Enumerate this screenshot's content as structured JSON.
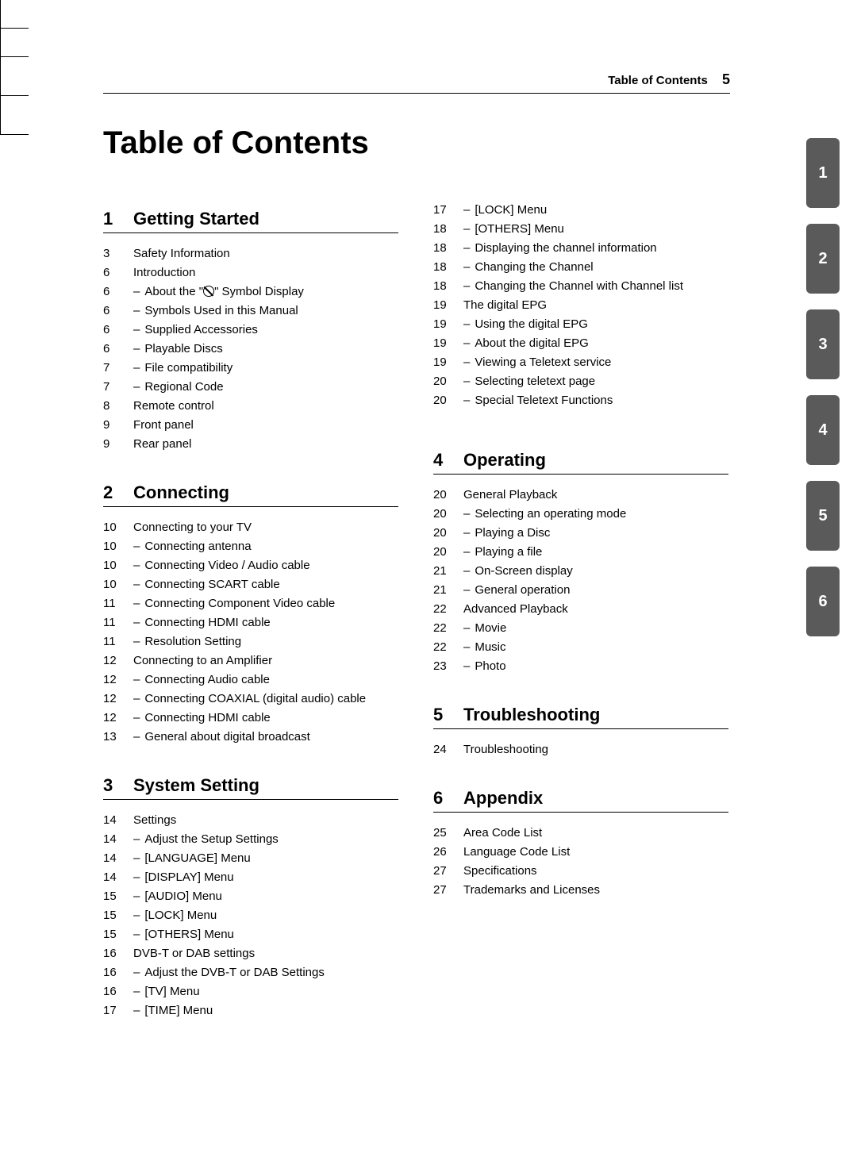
{
  "running_head": {
    "label": "Table of Contents",
    "page_number": "5"
  },
  "title": "Table of Contents",
  "side_tabs": [
    "1",
    "2",
    "3",
    "4",
    "5",
    "6"
  ],
  "style": {
    "tab_bg": "#5a5a5a",
    "tab_fg": "#ffffff",
    "text_color": "#000000",
    "bg_color": "#ffffff",
    "title_fontsize": 40,
    "section_fontsize": 22,
    "body_fontsize": 15
  },
  "sections": [
    {
      "num": "1",
      "title": "Getting Started",
      "col": 0,
      "entries": [
        {
          "page": "3",
          "text": "Safety Information",
          "sub": false
        },
        {
          "page": "6",
          "text": "Introduction",
          "sub": false
        },
        {
          "page": "6",
          "text": "About the \"⊘\" Symbol Display",
          "sub": true,
          "symbol": true
        },
        {
          "page": "6",
          "text": "Symbols Used in this Manual",
          "sub": true
        },
        {
          "page": "6",
          "text": "Supplied Accessories",
          "sub": true
        },
        {
          "page": "6",
          "text": "Playable Discs",
          "sub": true
        },
        {
          "page": "7",
          "text": "File compatibility",
          "sub": true
        },
        {
          "page": "7",
          "text": "Regional Code",
          "sub": true
        },
        {
          "page": "8",
          "text": "Remote control",
          "sub": false
        },
        {
          "page": "9",
          "text": "Front panel",
          "sub": false
        },
        {
          "page": "9",
          "text": "Rear panel",
          "sub": false
        }
      ]
    },
    {
      "num": "2",
      "title": "Connecting",
      "col": 0,
      "entries": [
        {
          "page": "10",
          "text": "Connecting to your TV",
          "sub": false
        },
        {
          "page": "10",
          "text": "Connecting antenna",
          "sub": true
        },
        {
          "page": "10",
          "text": "Connecting Video / Audio cable",
          "sub": true
        },
        {
          "page": "10",
          "text": "Connecting SCART cable",
          "sub": true
        },
        {
          "page": "11",
          "text": "Connecting Component Video cable",
          "sub": true
        },
        {
          "page": "11",
          "text": "Connecting HDMI cable",
          "sub": true
        },
        {
          "page": "11",
          "text": "Resolution Setting",
          "sub": true
        },
        {
          "page": "12",
          "text": "Connecting to an Amplifier",
          "sub": false
        },
        {
          "page": "12",
          "text": "Connecting Audio cable",
          "sub": true
        },
        {
          "page": "12",
          "text": "Connecting COAXIAL (digital audio) cable",
          "sub": true
        },
        {
          "page": "12",
          "text": "Connecting HDMI cable",
          "sub": true
        },
        {
          "page": "13",
          "text": "General about digital broadcast",
          "sub": true
        }
      ]
    },
    {
      "num": "3",
      "title": "System Setting",
      "col": 0,
      "entries_a": [
        {
          "page": "14",
          "text": "Settings",
          "sub": false
        },
        {
          "page": "14",
          "text": "Adjust the Setup Settings",
          "sub": true
        },
        {
          "page": "14",
          "text": "[LANGUAGE] Menu",
          "sub": true
        },
        {
          "page": "14",
          "text": "[DISPLAY] Menu",
          "sub": true
        },
        {
          "page": "15",
          "text": "[AUDIO] Menu",
          "sub": true
        },
        {
          "page": "15",
          "text": "[LOCK] Menu",
          "sub": true
        },
        {
          "page": "15",
          "text": "[OTHERS] Menu",
          "sub": true
        },
        {
          "page": "16",
          "text": "DVB-T or DAB settings",
          "sub": false
        },
        {
          "page": "16",
          "text": "Adjust the DVB-T or DAB Settings",
          "sub": true
        },
        {
          "page": "16",
          "text": "[TV] Menu",
          "sub": true
        },
        {
          "page": "17",
          "text": "[TIME] Menu",
          "sub": true
        }
      ],
      "entries_b": [
        {
          "page": "17",
          "text": "[LOCK] Menu",
          "sub": true
        },
        {
          "page": "18",
          "text": "[OTHERS] Menu",
          "sub": true
        },
        {
          "page": "18",
          "text": "Displaying the channel information",
          "sub": true
        },
        {
          "page": "18",
          "text": "Changing the Channel",
          "sub": true
        },
        {
          "page": "18",
          "text": "Changing the Channel with Channel list",
          "sub": true
        },
        {
          "page": "19",
          "text": "The digital EPG",
          "sub": false
        },
        {
          "page": "19",
          "text": "Using the digital EPG",
          "sub": true
        },
        {
          "page": "19",
          "text": "About the digital EPG",
          "sub": true
        },
        {
          "page": "19",
          "text": "Viewing a Teletext service",
          "sub": true
        },
        {
          "page": "20",
          "text": "Selecting teletext page",
          "sub": true
        },
        {
          "page": "20",
          "text": "Special Teletext Functions",
          "sub": true
        }
      ]
    },
    {
      "num": "4",
      "title": "Operating",
      "col": 1,
      "entries": [
        {
          "page": "20",
          "text": "General Playback",
          "sub": false
        },
        {
          "page": "20",
          "text": "Selecting an operating mode",
          "sub": true
        },
        {
          "page": "20",
          "text": "Playing a Disc",
          "sub": true
        },
        {
          "page": "20",
          "text": "Playing a file",
          "sub": true
        },
        {
          "page": "21",
          "text": "On-Screen display",
          "sub": true
        },
        {
          "page": "21",
          "text": "General operation",
          "sub": true
        },
        {
          "page": "22",
          "text": "Advanced Playback",
          "sub": false
        },
        {
          "page": "22",
          "text": "Movie",
          "sub": true
        },
        {
          "page": "22",
          "text": "Music",
          "sub": true
        },
        {
          "page": "23",
          "text": "Photo",
          "sub": true
        }
      ]
    },
    {
      "num": "5",
      "title": "Troubleshooting",
      "col": 1,
      "entries": [
        {
          "page": "24",
          "text": "Troubleshooting",
          "sub": false
        }
      ]
    },
    {
      "num": "6",
      "title": "Appendix",
      "col": 1,
      "entries": [
        {
          "page": "25",
          "text": "Area Code List",
          "sub": false
        },
        {
          "page": "26",
          "text": "Language Code List",
          "sub": false
        },
        {
          "page": "27",
          "text": "Specifications",
          "sub": false
        },
        {
          "page": "27",
          "text": "Trademarks and Licenses",
          "sub": false
        }
      ]
    }
  ]
}
